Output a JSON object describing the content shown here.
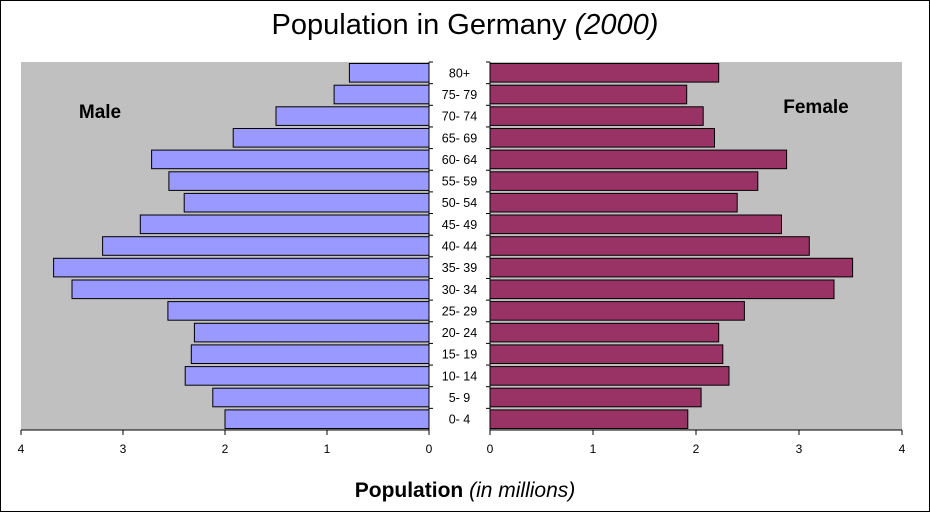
{
  "chart_data": {
    "type": "bar",
    "subtype": "population-pyramid",
    "title": "Population in Germany",
    "title_year": "(2000)",
    "xlabel": "Population",
    "xlabel_units": "(in millions)",
    "xlim": [
      0,
      4
    ],
    "ticks": [
      "0",
      "1",
      "2",
      "3",
      "4"
    ],
    "categories": [
      "80+",
      "75- 79",
      "70- 74",
      "65- 69",
      "60- 64",
      "55- 59",
      "50- 54",
      "45- 49",
      "40- 44",
      "35- 39",
      "30- 34",
      "25- 29",
      "20- 24",
      "15- 19",
      "10- 14",
      "5- 9",
      "0- 4"
    ],
    "series": [
      {
        "name": "Male",
        "side": "left",
        "color": "#9999ff",
        "values": [
          0.78,
          0.93,
          1.5,
          1.92,
          2.72,
          2.55,
          2.4,
          2.83,
          3.2,
          3.68,
          3.5,
          2.56,
          2.3,
          2.33,
          2.39,
          2.12,
          2.0
        ]
      },
      {
        "name": "Female",
        "side": "right",
        "color": "#993366",
        "values": [
          2.22,
          1.91,
          2.07,
          2.18,
          2.88,
          2.6,
          2.4,
          2.83,
          3.1,
          3.52,
          3.34,
          2.47,
          2.22,
          2.26,
          2.32,
          2.05,
          1.92
        ]
      }
    ],
    "plot_background": "#c0c0c0",
    "grid": false,
    "legend": "none"
  }
}
